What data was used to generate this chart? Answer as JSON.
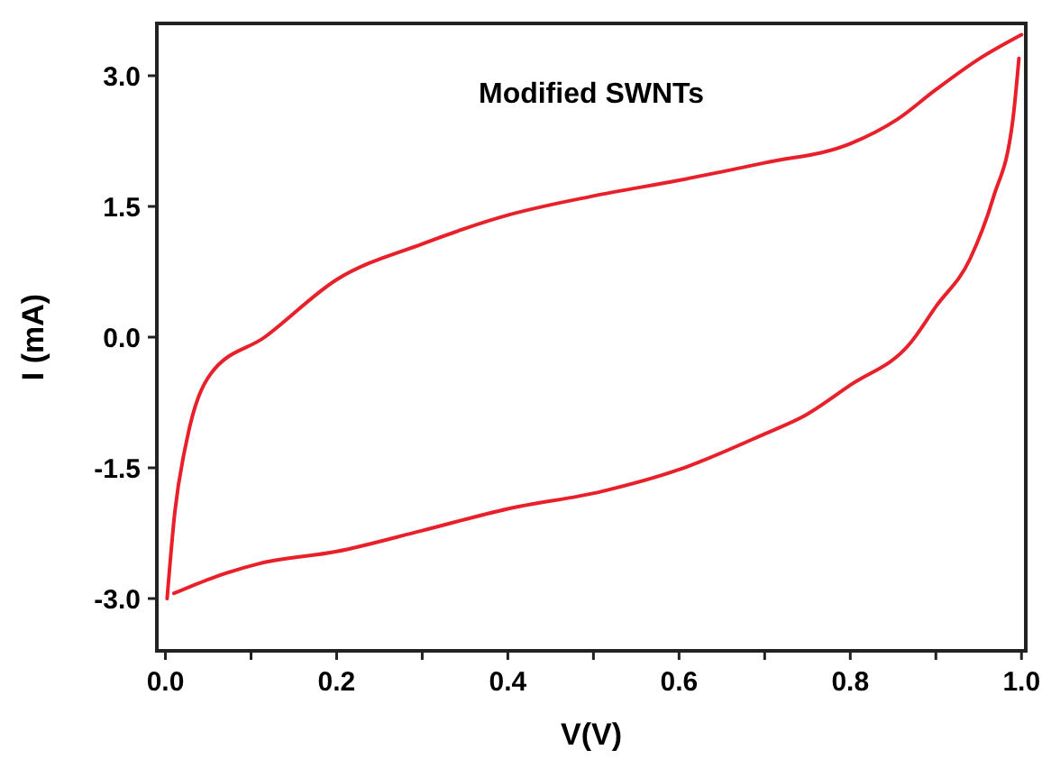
{
  "chart_data": {
    "type": "line",
    "title": "Modified SWNTs",
    "xlabel": "V(V)",
    "ylabel": "I (mA)",
    "xlim": [
      -0.01,
      1.005
    ],
    "ylim": [
      -3.6,
      3.6
    ],
    "xticks": [
      {
        "value": 0,
        "label": "0.0"
      },
      {
        "value": 0.1,
        "label": null
      },
      {
        "value": 0.2,
        "label": "0.2"
      },
      {
        "value": 0.3,
        "label": null
      },
      {
        "value": 0.4,
        "label": "0.4"
      },
      {
        "value": 0.5,
        "label": null
      },
      {
        "value": 0.6,
        "label": "0.6"
      },
      {
        "value": 0.7,
        "label": null
      },
      {
        "value": 0.8,
        "label": "0.8"
      },
      {
        "value": 0.9,
        "label": null
      },
      {
        "value": 1,
        "label": "1.0"
      }
    ],
    "yticks": [
      {
        "value": -3,
        "label": "-3.0"
      },
      {
        "value": -1.5,
        "label": "-1.5"
      },
      {
        "value": 0,
        "label": "0.0"
      },
      {
        "value": 1.5,
        "label": "1.5"
      },
      {
        "value": 3,
        "label": "3.0"
      }
    ],
    "grid": false,
    "marker": "none",
    "line_style": "solid",
    "series": [
      {
        "color": "#e8202a",
        "x": [
          0.002,
          0.011,
          0.025,
          0.053,
          0.116,
          0.2,
          0.3,
          0.4,
          0.5,
          0.6,
          0.7,
          0.8,
          0.855,
          0.9,
          0.95,
          1.0
        ],
        "values": [
          -3.0,
          -2.01,
          -1.18,
          -0.42,
          0.0,
          0.66,
          1.07,
          1.4,
          1.62,
          1.8,
          2.0,
          2.22,
          2.5,
          2.84,
          3.19,
          3.47
        ]
      },
      {
        "color": "#e8202a",
        "x": [
          0.01,
          0.053,
          0.109,
          0.2,
          0.3,
          0.4,
          0.51,
          0.6,
          0.7,
          0.747,
          0.8,
          0.87,
          0.9,
          0.94,
          0.967,
          0.99,
          0.997
        ],
        "values": [
          -2.94,
          -2.77,
          -2.6,
          -2.46,
          -2.22,
          -1.97,
          -1.77,
          -1.52,
          -1.11,
          -0.9,
          -0.55,
          -0.07,
          0.35,
          0.9,
          1.6,
          2.5,
          3.2
        ]
      }
    ]
  }
}
